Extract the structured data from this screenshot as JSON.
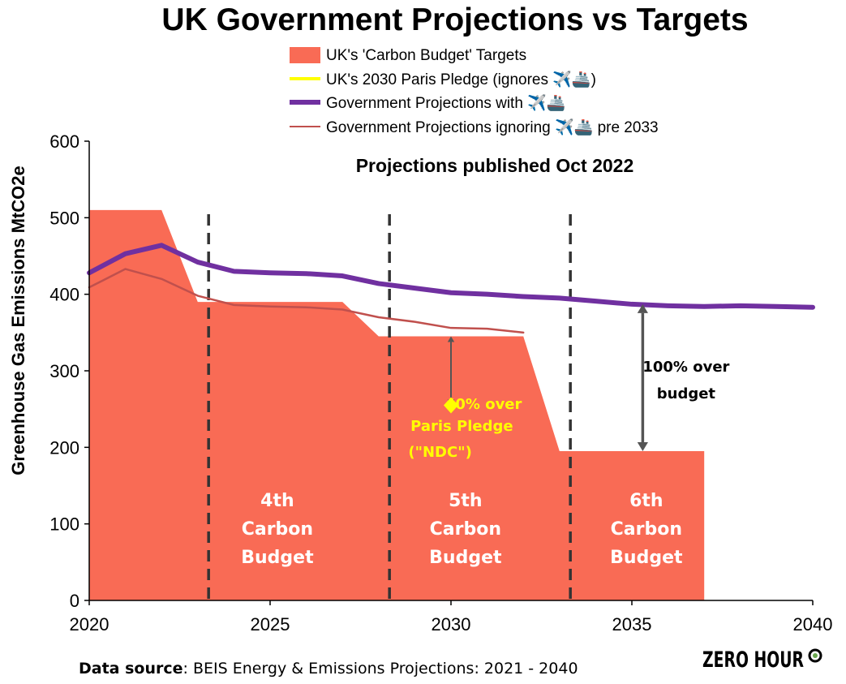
{
  "title": "UK Government Projections vs Targets",
  "subtitle": "Projections published Oct 2022",
  "ylabel": "Greenhouse Gas Emissions MtCO2e",
  "colors": {
    "targets": "#f96b55",
    "paris": "#ffff00",
    "gov_with": "#7030a0",
    "gov_ignoring": "#c0504d",
    "dash": "#333333",
    "arrow": "#555555",
    "ndc_text": "#ffff00",
    "logo_dot": "#6aa84f"
  },
  "legend": [
    {
      "label": "UK's 'Carbon Budget' Targets",
      "icon": "filled-rect-swatch"
    },
    {
      "label": "UK's 2030 Paris Pledge (ignores ✈️🚢)",
      "icon": "thin-yellow-line"
    },
    {
      "label": "Government Projections with ✈️🚢",
      "icon": "thick-purple-line"
    },
    {
      "label": "Government Projections ignoring ✈️🚢 pre 2033",
      "icon": "thin-red-line"
    }
  ],
  "chart_data": {
    "type": "line",
    "xlim": [
      2020,
      2040
    ],
    "ylim": [
      0,
      600
    ],
    "xticks": [
      "2020",
      "2025",
      "2030",
      "2035",
      "2040"
    ],
    "yticks": [
      "0",
      "100",
      "200",
      "300",
      "400",
      "500",
      "600"
    ],
    "grid": false,
    "legend_placement": "top",
    "series": [
      {
        "name": "UK's 'Carbon Budget' Targets",
        "kind": "area",
        "points": [
          [
            2020,
            510
          ],
          [
            2022,
            510
          ],
          [
            2023,
            390
          ],
          [
            2027,
            390
          ],
          [
            2028,
            345
          ],
          [
            2032,
            345
          ],
          [
            2033,
            195
          ],
          [
            2037,
            195
          ],
          [
            2037,
            0
          ]
        ]
      },
      {
        "name": "UK's 2030 Paris Pledge (ignores ✈️🚢)",
        "kind": "point",
        "points": [
          [
            2030,
            255
          ]
        ]
      },
      {
        "name": "Government Projections with ✈️🚢",
        "kind": "line",
        "x": [
          2020,
          2021,
          2022,
          2023,
          2024,
          2025,
          2026,
          2027,
          2028,
          2029,
          2030,
          2031,
          2032,
          2033,
          2034,
          2035,
          2036,
          2037,
          2038,
          2039,
          2040
        ],
        "y": [
          428,
          453,
          464,
          442,
          430,
          428,
          427,
          424,
          414,
          408,
          402,
          400,
          397,
          395,
          391,
          387,
          385,
          384,
          385,
          384,
          383
        ]
      },
      {
        "name": "Government Projections ignoring ✈️🚢 pre 2033",
        "kind": "line",
        "x": [
          2020,
          2021,
          2022,
          2023,
          2024,
          2025,
          2026,
          2027,
          2028,
          2029,
          2030,
          2031,
          2032
        ],
        "y": [
          409,
          433,
          420,
          398,
          386,
          384,
          383,
          380,
          370,
          364,
          356,
          355,
          350
        ]
      }
    ],
    "period_dividers": [
      2023.3,
      2028.3,
      2033.3
    ],
    "budget_labels": [
      {
        "x": 2025.2,
        "lines": [
          "4th",
          "Carbon",
          "Budget"
        ]
      },
      {
        "x": 2030.4,
        "lines": [
          "5th",
          "Carbon",
          "Budget"
        ]
      },
      {
        "x": 2035.4,
        "lines": [
          "6th",
          "Carbon",
          "Budget"
        ]
      }
    ],
    "annotations": [
      {
        "x": 2030.0,
        "from": 345,
        "to": 255,
        "lines": [
          "40% over",
          "Paris Pledge",
          "(\"NDC\")"
        ],
        "color": "#ffff00"
      },
      {
        "x": 2035.3,
        "from": 387,
        "to": 195,
        "lines": [
          "100% over",
          "budget"
        ],
        "color": "#000000"
      }
    ]
  },
  "footer": {
    "source_label": "Data source",
    "source_text": ": BEIS Energy & Emissions Projections: 2021 - 2040",
    "logo_text": "ZERO HOUR"
  }
}
